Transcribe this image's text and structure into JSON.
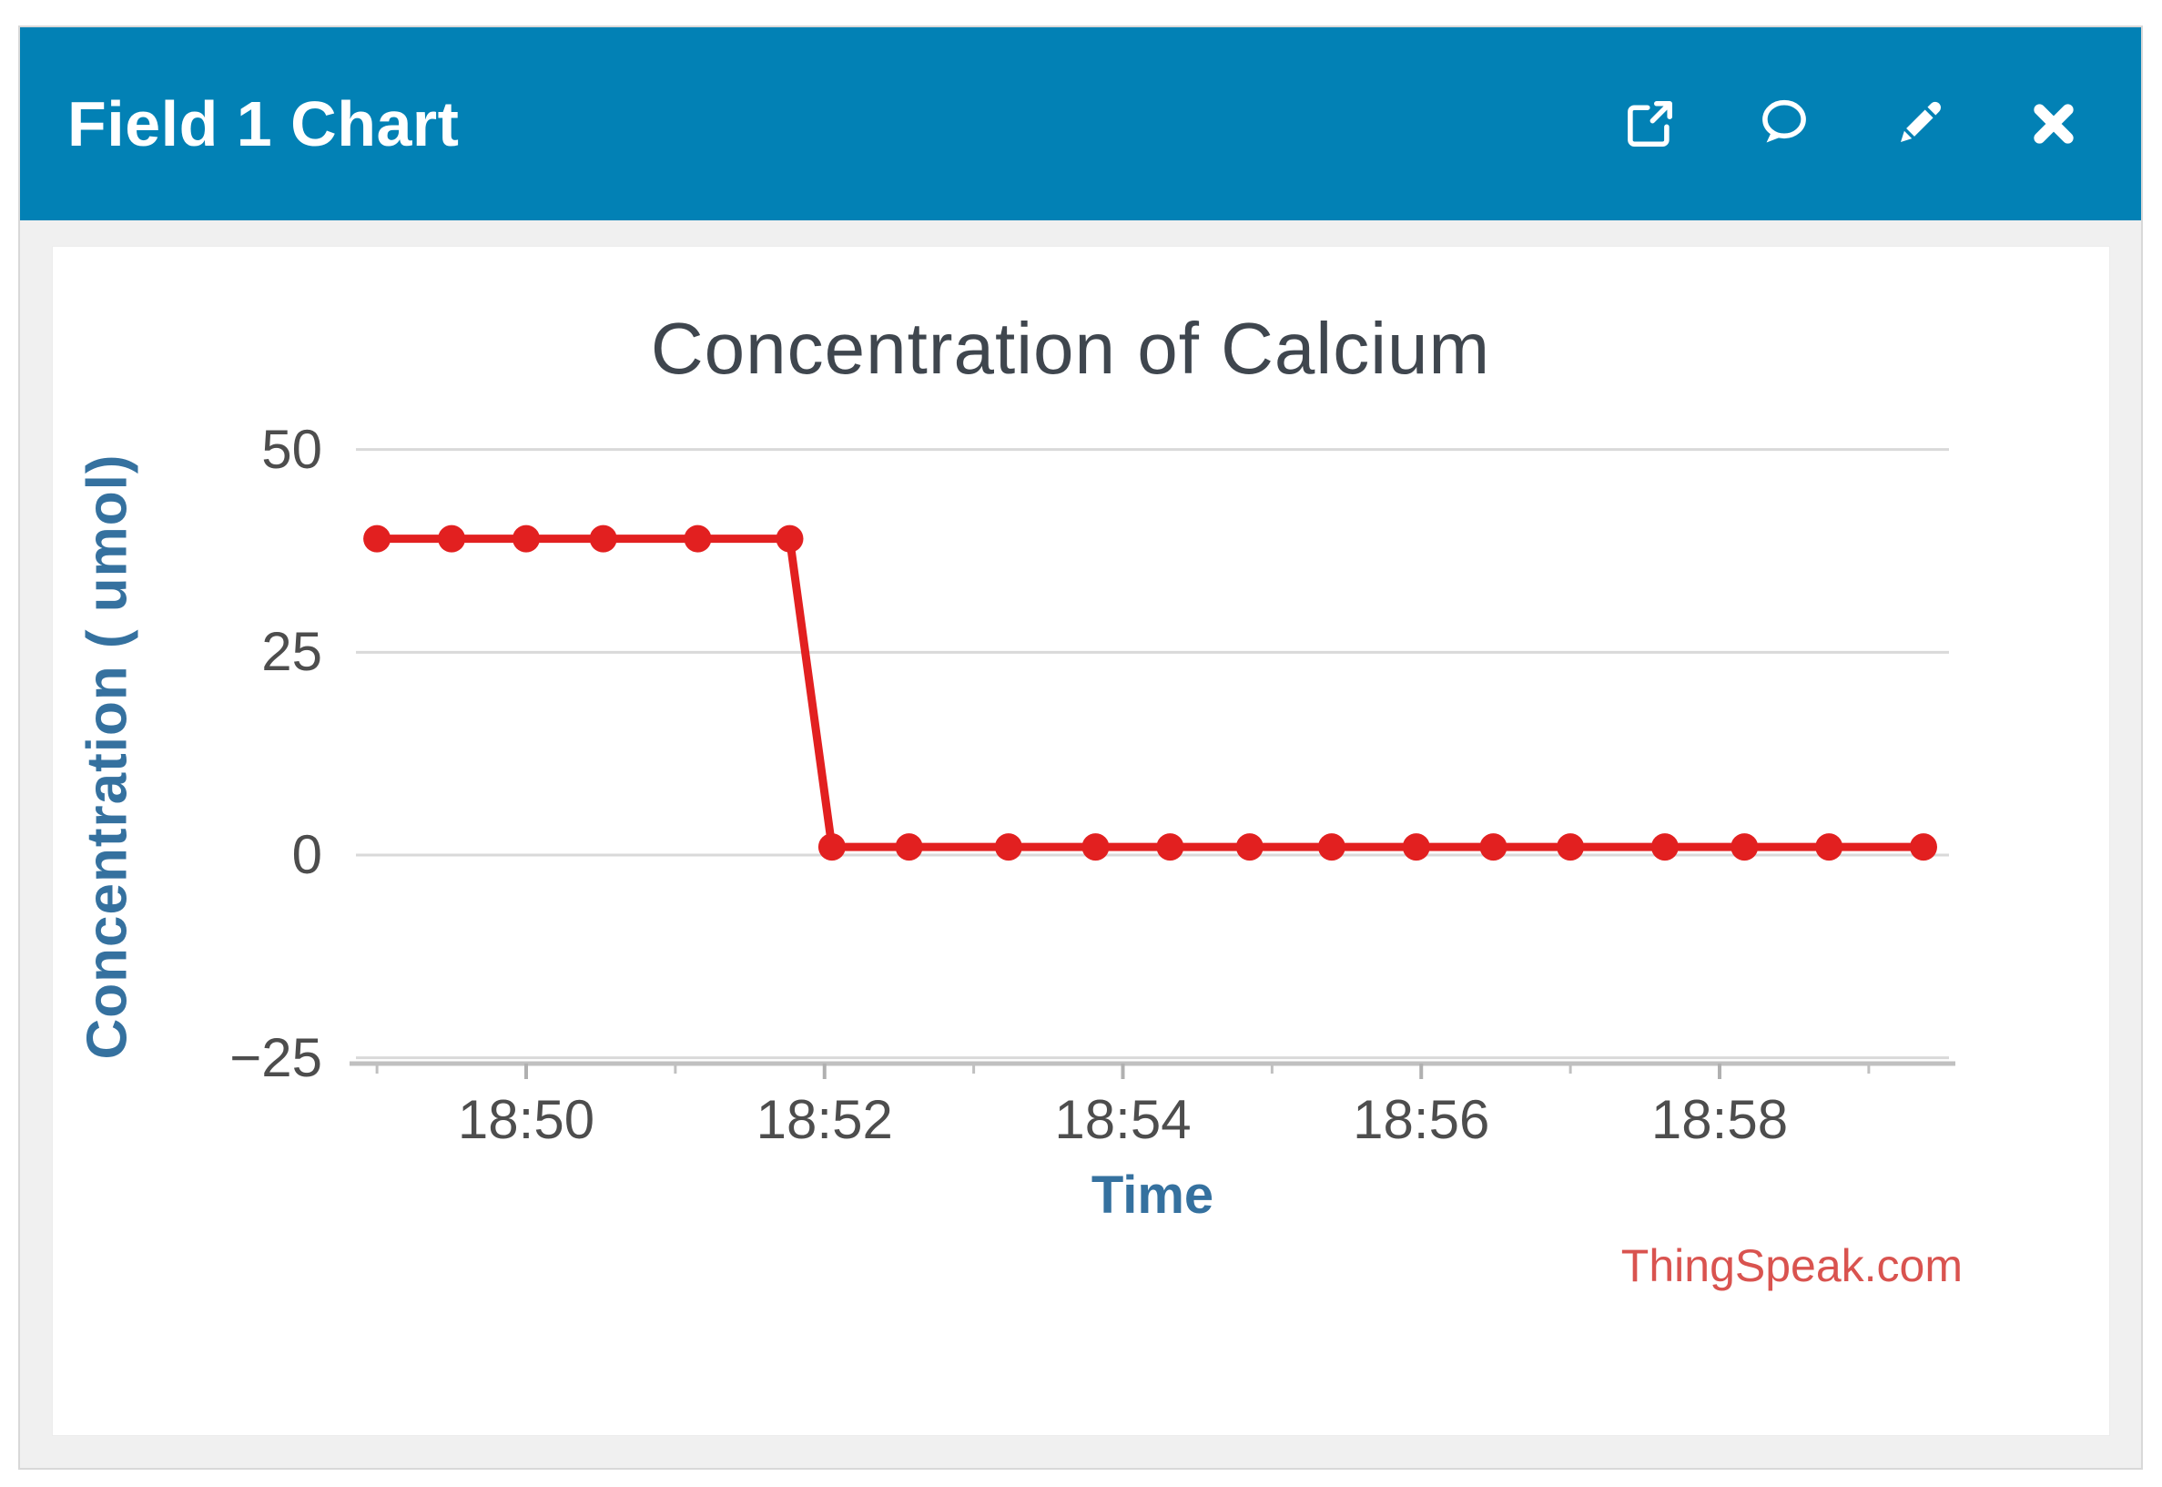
{
  "widget": {
    "title": "Field 1 Chart",
    "toolbar_icons": [
      "external-link",
      "comment",
      "edit",
      "close"
    ]
  },
  "colors": {
    "header_background": "#0281b5",
    "header_foreground": "#ffffff",
    "series_red": "#e22020",
    "watermark_red": "#d9534f",
    "axis_title_blue": "#35719f",
    "tick_label_gray": "#4d4d4d",
    "chart_title_gray": "#3f464e",
    "gridline_gray": "#d9d9d9",
    "axis_line_gray": "#c0c0c0",
    "panel_gray": "#f0f0f0"
  },
  "chart_data": {
    "type": "line",
    "title": "Concentration of Calcium",
    "xlabel": "Time",
    "ylabel": "Concentration ( umol)",
    "watermark": "ThingSpeak.com",
    "legend": "none",
    "grid": "horizontal",
    "marker": "circle",
    "x": [
      "18:49:00",
      "18:49:30",
      "18:50:00",
      "18:50:31",
      "18:51:09",
      "18:51:46",
      "18:52:03",
      "18:52:34",
      "18:53:14",
      "18:53:49",
      "18:54:19",
      "18:54:51",
      "18:55:24",
      "18:55:58",
      "18:56:29",
      "18:57:00",
      "18:57:38",
      "18:58:10",
      "18:58:44",
      "18:59:22"
    ],
    "values": [
      39,
      39,
      39,
      39,
      39,
      39,
      1,
      1,
      1,
      1,
      1,
      1,
      1,
      1,
      1,
      1,
      1,
      1,
      1,
      1
    ],
    "x_ticks": [
      "18:50",
      "18:52",
      "18:54",
      "18:56",
      "18:58"
    ],
    "x_minor_ticks": [
      "18:49",
      "18:51",
      "18:53",
      "18:55",
      "18:57",
      "18:59"
    ],
    "y_ticks": [
      50,
      25,
      0,
      -25
    ],
    "ylim": [
      -26,
      52
    ],
    "xlim": [
      "18:48:50",
      "18:59:32"
    ]
  }
}
